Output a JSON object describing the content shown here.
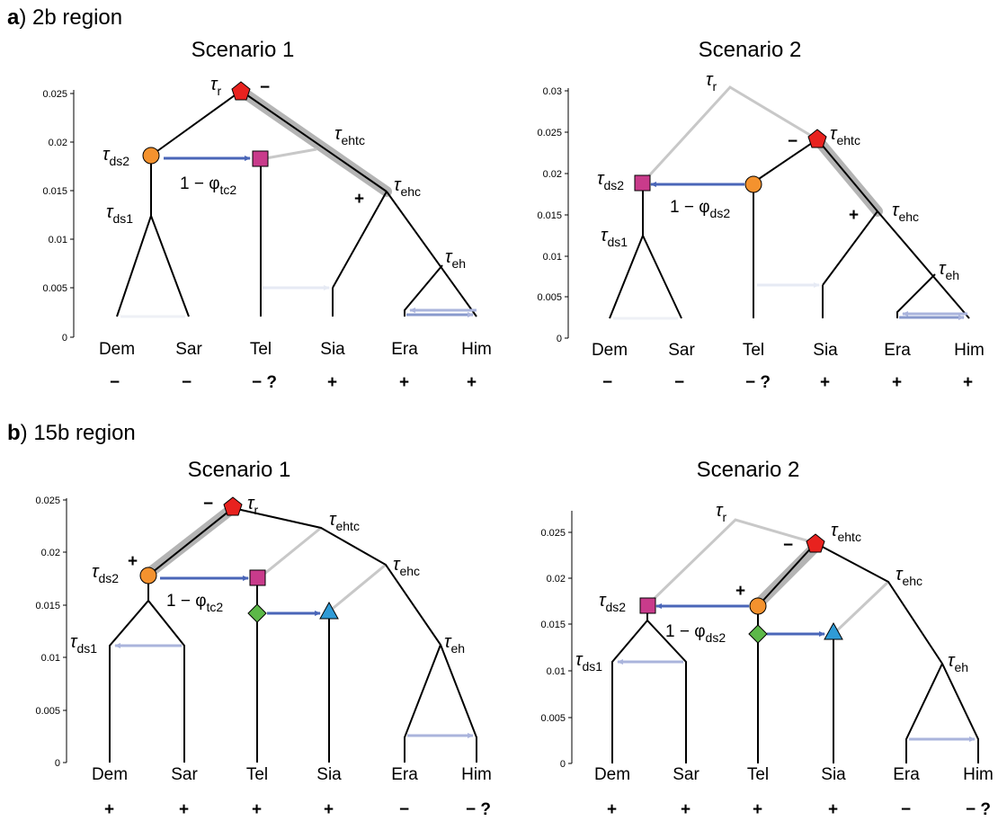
{
  "sections": [
    {
      "letter": "a",
      "title": ") 2b region",
      "scenarios": [
        {
          "title": "Scenario 1",
          "ticks": [
            "0.025",
            "0.02",
            "0.015",
            "0.01",
            "0.005",
            "0"
          ],
          "tips": [
            "Dem",
            "Sar",
            "Tel",
            "Sia",
            "Era",
            "Him"
          ],
          "signs": [
            "−",
            "−",
            "− ?",
            "+",
            "+",
            "+"
          ],
          "nodes": [
            {
              "sym": "τ",
              "sub": "r"
            },
            {
              "sym": "τ",
              "sub": "ds2"
            },
            {
              "sym": "τ",
              "sub": "ehtc"
            },
            {
              "sym": "τ",
              "sub": "ehc"
            },
            {
              "sym": "τ",
              "sub": "ds1"
            },
            {
              "sym": "τ",
              "sub": "eh"
            }
          ],
          "branch_signs": [
            "−",
            "+"
          ],
          "migration_label": {
            "main": "1 − φ",
            "sub": "tc2"
          }
        },
        {
          "title": "Scenario 2",
          "ticks": [
            "0.03",
            "0.025",
            "0.02",
            "0.015",
            "0.01",
            "0.005",
            "0"
          ],
          "tips": [
            "Dem",
            "Sar",
            "Tel",
            "Sia",
            "Era",
            "Him"
          ],
          "signs": [
            "−",
            "−",
            "− ?",
            "+",
            "+",
            "+"
          ],
          "nodes": [
            {
              "sym": "τ",
              "sub": "r"
            },
            {
              "sym": "τ",
              "sub": "ehtc"
            },
            {
              "sym": "τ",
              "sub": "ds2"
            },
            {
              "sym": "τ",
              "sub": "ehc"
            },
            {
              "sym": "τ",
              "sub": "ds1"
            },
            {
              "sym": "τ",
              "sub": "eh"
            }
          ],
          "branch_signs": [
            "−",
            "+"
          ],
          "migration_label": {
            "main": "1 − φ",
            "sub": "ds2"
          }
        }
      ]
    },
    {
      "letter": "b",
      "title": ") 15b region",
      "scenarios": [
        {
          "title": "Scenario 1",
          "ticks": [
            "0.025",
            "0.02",
            "0.015",
            "0.01",
            "0.005",
            "0"
          ],
          "tips": [
            "Dem",
            "Sar",
            "Tel",
            "Sia",
            "Era",
            "Him"
          ],
          "signs": [
            "+",
            "+",
            "+",
            "+",
            "−",
            "− ?"
          ],
          "nodes": [
            {
              "sym": "τ",
              "sub": "r"
            },
            {
              "sym": "τ",
              "sub": "ehtc"
            },
            {
              "sym": "τ",
              "sub": "ehc"
            },
            {
              "sym": "τ",
              "sub": "ds2"
            },
            {
              "sym": "τ",
              "sub": "ds1"
            },
            {
              "sym": "τ",
              "sub": "eh"
            }
          ],
          "branch_signs": [
            "−",
            "+"
          ],
          "migration_label": {
            "main": "1 − φ",
            "sub": "tc2"
          }
        },
        {
          "title": "Scenario 2",
          "ticks": [
            "0.025",
            "0.02",
            "0.015",
            "0.01",
            "0.005",
            "0"
          ],
          "tips": [
            "Dem",
            "Sar",
            "Tel",
            "Sia",
            "Era",
            "Him"
          ],
          "signs": [
            "+",
            "+",
            "+",
            "+",
            "−",
            "− ?"
          ],
          "nodes": [
            {
              "sym": "τ",
              "sub": "r"
            },
            {
              "sym": "τ",
              "sub": "ehtc"
            },
            {
              "sym": "τ",
              "sub": "ehc"
            },
            {
              "sym": "τ",
              "sub": "ds2"
            },
            {
              "sym": "τ",
              "sub": "ds1"
            },
            {
              "sym": "τ",
              "sub": "eh"
            }
          ],
          "branch_signs": [
            "−",
            "+"
          ],
          "migration_label": {
            "main": "1 − φ",
            "sub": "ds2"
          }
        }
      ]
    }
  ],
  "colors": {
    "branch": "#000000",
    "faded_branch": "#c8c8c8",
    "highlight": "#a8a8a8",
    "migration": "#4a66b8",
    "migration_faint": "#aab4dc",
    "migration_ghost": "#e6eaf4",
    "root_marker": "#e8221f",
    "ds2_marker": "#f4922e",
    "square_marker": "#c93b8b",
    "diamond_marker": "#5cb848",
    "triangle_marker": "#2f9bd6"
  }
}
